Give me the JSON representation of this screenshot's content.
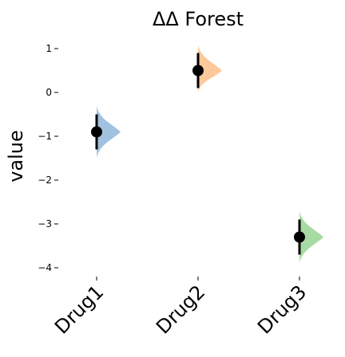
{
  "chart_data": {
    "type": "scatter",
    "title": "ΔΔ Forest",
    "xlabel": "",
    "ylabel": "value",
    "ylim": [
      -4.3,
      1.2
    ],
    "yticks": [
      1,
      0,
      -1,
      -2,
      -3,
      -4
    ],
    "ytick_labels": [
      "1",
      "0",
      "−1",
      "−2",
      "−3",
      "−4"
    ],
    "grid": false,
    "categories": [
      "Drug1",
      "Drug2",
      "Drug3"
    ],
    "series": [
      {
        "points": [
          {
            "category": "Drug1",
            "value": -0.9,
            "ci": [
              -1.3,
              -0.5
            ],
            "dist_range": [
              -1.5,
              -0.3
            ],
            "color": "#8fb7d8"
          },
          {
            "category": "Drug2",
            "value": 0.5,
            "ci": [
              0.1,
              0.9
            ],
            "dist_range": [
              0.0,
              1.1
            ],
            "color": "#fdc08a"
          },
          {
            "category": "Drug3",
            "value": -3.3,
            "ci": [
              -3.7,
              -2.9
            ],
            "dist_range": [
              -3.9,
              -2.7
            ],
            "color": "#99d594"
          }
        ]
      }
    ]
  }
}
